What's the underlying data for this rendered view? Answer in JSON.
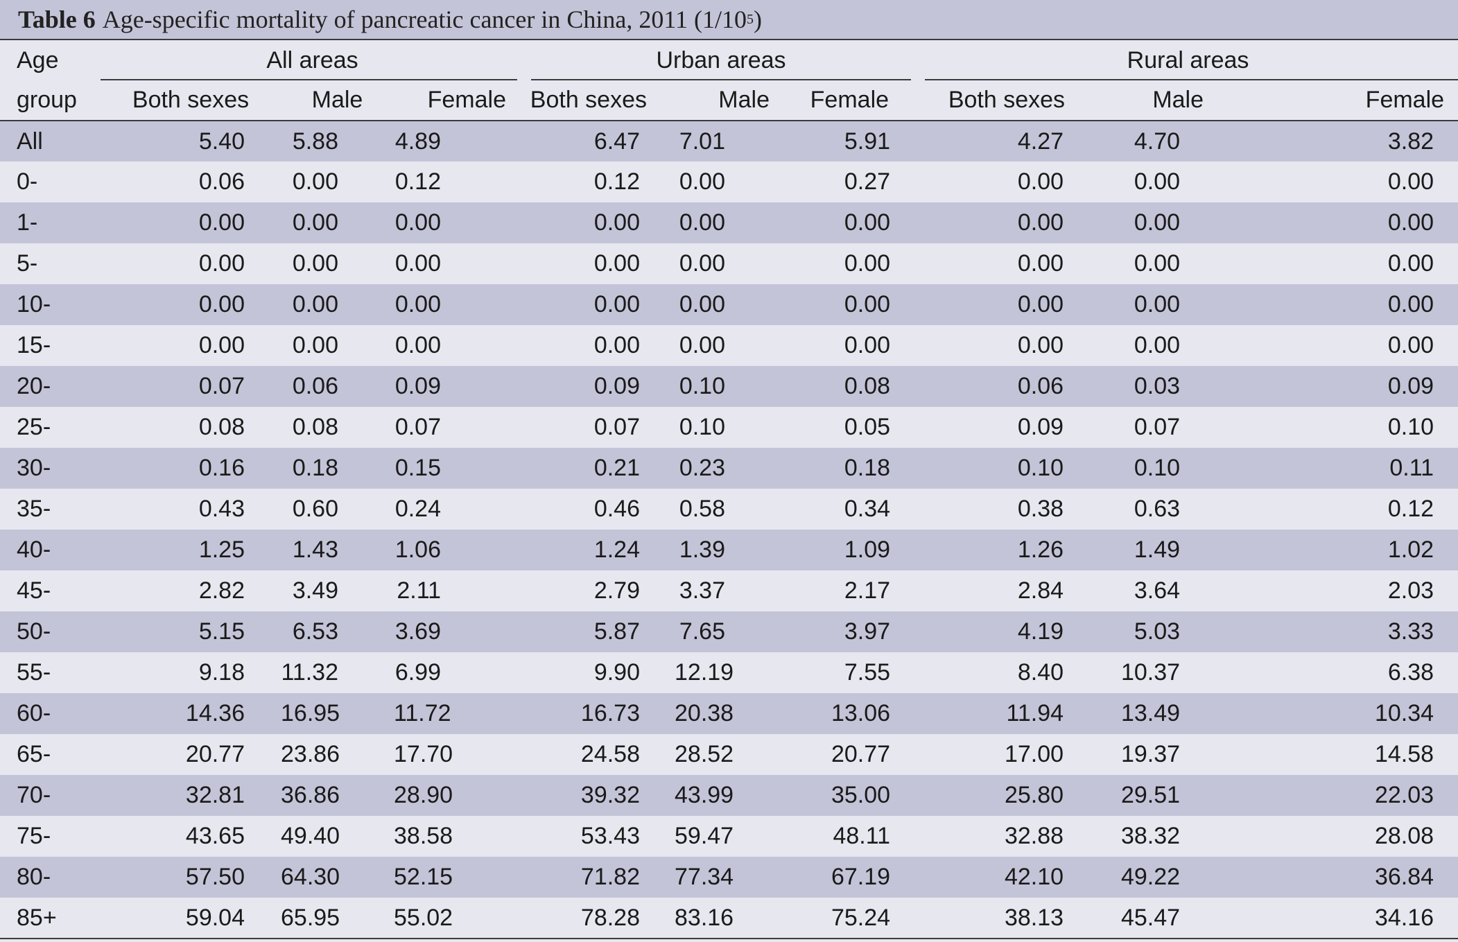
{
  "caption": {
    "label": "Table 6",
    "text_before": "Age-specific mortality of pancreatic cancer in China, 2011 (1/10",
    "superscript": "5",
    "text_after": ")"
  },
  "header": {
    "age_line1": "Age",
    "age_line2": "group",
    "groups": [
      "All areas",
      "Urban areas",
      "Rural areas"
    ],
    "subcols": [
      "Both sexes",
      "Male",
      "Female",
      "Both sexes",
      "Male",
      "Female",
      "Both sexes",
      "Male",
      "Female"
    ]
  },
  "rows": [
    {
      "age": "All",
      "values": [
        "5.40",
        "5.88",
        "4.89",
        "6.47",
        "7.01",
        "5.91",
        "4.27",
        "4.70",
        "3.82"
      ]
    },
    {
      "age": "0-",
      "values": [
        "0.06",
        "0.00",
        "0.12",
        "0.12",
        "0.00",
        "0.27",
        "0.00",
        "0.00",
        "0.00"
      ]
    },
    {
      "age": "1-",
      "values": [
        "0.00",
        "0.00",
        "0.00",
        "0.00",
        "0.00",
        "0.00",
        "0.00",
        "0.00",
        "0.00"
      ]
    },
    {
      "age": "5-",
      "values": [
        "0.00",
        "0.00",
        "0.00",
        "0.00",
        "0.00",
        "0.00",
        "0.00",
        "0.00",
        "0.00"
      ]
    },
    {
      "age": "10-",
      "values": [
        "0.00",
        "0.00",
        "0.00",
        "0.00",
        "0.00",
        "0.00",
        "0.00",
        "0.00",
        "0.00"
      ]
    },
    {
      "age": "15-",
      "values": [
        "0.00",
        "0.00",
        "0.00",
        "0.00",
        "0.00",
        "0.00",
        "0.00",
        "0.00",
        "0.00"
      ]
    },
    {
      "age": "20-",
      "values": [
        "0.07",
        "0.06",
        "0.09",
        "0.09",
        "0.10",
        "0.08",
        "0.06",
        "0.03",
        "0.09"
      ]
    },
    {
      "age": "25-",
      "values": [
        "0.08",
        "0.08",
        "0.07",
        "0.07",
        "0.10",
        "0.05",
        "0.09",
        "0.07",
        "0.10"
      ]
    },
    {
      "age": "30-",
      "values": [
        "0.16",
        "0.18",
        "0.15",
        "0.21",
        "0.23",
        "0.18",
        "0.10",
        "0.10",
        "0.11"
      ]
    },
    {
      "age": "35-",
      "values": [
        "0.43",
        "0.60",
        "0.24",
        "0.46",
        "0.58",
        "0.34",
        "0.38",
        "0.63",
        "0.12"
      ]
    },
    {
      "age": "40-",
      "values": [
        "1.25",
        "1.43",
        "1.06",
        "1.24",
        "1.39",
        "1.09",
        "1.26",
        "1.49",
        "1.02"
      ]
    },
    {
      "age": "45-",
      "values": [
        "2.82",
        "3.49",
        "2.11",
        "2.79",
        "3.37",
        "2.17",
        "2.84",
        "3.64",
        "2.03"
      ]
    },
    {
      "age": "50-",
      "values": [
        "5.15",
        "6.53",
        "3.69",
        "5.87",
        "7.65",
        "3.97",
        "4.19",
        "5.03",
        "3.33"
      ]
    },
    {
      "age": "55-",
      "values": [
        "9.18",
        "11.32",
        "6.99",
        "9.90",
        "12.19",
        "7.55",
        "8.40",
        "10.37",
        "6.38"
      ]
    },
    {
      "age": "60-",
      "values": [
        "14.36",
        "16.95",
        "11.72",
        "16.73",
        "20.38",
        "13.06",
        "11.94",
        "13.49",
        "10.34"
      ]
    },
    {
      "age": "65-",
      "values": [
        "20.77",
        "23.86",
        "17.70",
        "24.58",
        "28.52",
        "20.77",
        "17.00",
        "19.37",
        "14.58"
      ]
    },
    {
      "age": "70-",
      "values": [
        "32.81",
        "36.86",
        "28.90",
        "39.32",
        "43.99",
        "35.00",
        "25.80",
        "29.51",
        "22.03"
      ]
    },
    {
      "age": "75-",
      "values": [
        "43.65",
        "49.40",
        "38.58",
        "53.43",
        "59.47",
        "48.11",
        "32.88",
        "38.32",
        "28.08"
      ]
    },
    {
      "age": "80-",
      "values": [
        "57.50",
        "64.30",
        "52.15",
        "71.82",
        "77.34",
        "67.19",
        "42.10",
        "49.22",
        "36.84"
      ]
    },
    {
      "age": "85+",
      "values": [
        "59.04",
        "65.95",
        "55.02",
        "78.28",
        "83.16",
        "75.24",
        "38.13",
        "45.47",
        "34.16"
      ]
    }
  ]
}
